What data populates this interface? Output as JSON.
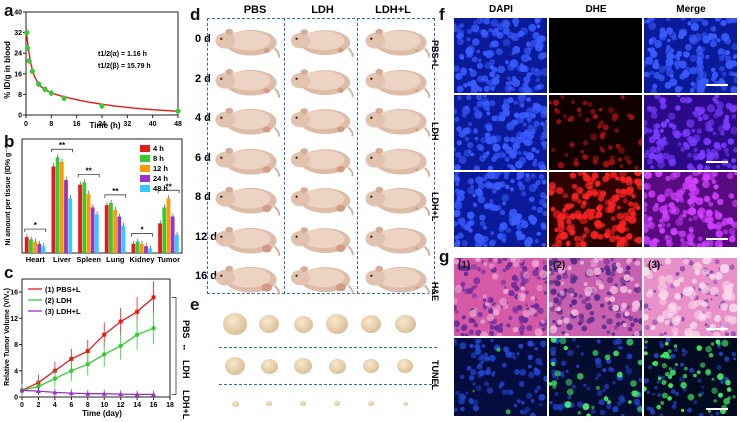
{
  "panels": {
    "a": "a",
    "b": "b",
    "c": "c",
    "d": "d",
    "e": "e",
    "f": "f",
    "g": "g"
  },
  "panel_a": {
    "ylabel": "% ID/g in blood",
    "xlabel": "Time (h)",
    "half_life_alpha": "t1/2(α) = 1.16 h",
    "half_life_beta": "t1/2(β) = 15.79 h"
  },
  "panel_b": {
    "ylabel": "Ni amount per tissue (ID% g⁻¹)",
    "legend": [
      "4 h",
      "8 h",
      "12 h",
      "24 h",
      "48 h"
    ],
    "significance": "**",
    "significance_single": "*"
  },
  "panel_c": {
    "ylabel": "Relative Tumor Volume (V/V₀)",
    "xlabel": "Time (day)",
    "legend": [
      "(1) PBS+L",
      "(2) LDH",
      "(3) LDH+L"
    ]
  },
  "panel_d": {
    "columns": [
      "PBS",
      "LDH",
      "LDH+L"
    ],
    "rows": [
      "0 d",
      "2 d",
      "4 d",
      "6 d",
      "8 d",
      "12 d",
      "16 d"
    ]
  },
  "panel_e": {
    "rows": [
      "PBS",
      "LDH",
      "LDH+L"
    ]
  },
  "panel_f": {
    "columns": [
      "DAPI",
      "DHE",
      "Merge"
    ],
    "rows": [
      "PBS+L",
      "LDH",
      "LDH+L"
    ]
  },
  "panel_g": {
    "columns": [
      "(1)",
      "(2)",
      "(3)"
    ],
    "rows": [
      "H&E",
      "TUNEL"
    ]
  },
  "colors": {
    "red": "#e41a1c",
    "green": "#33cc33",
    "orange": "#ff9900",
    "purple": "#9933cc",
    "cyan": "#33ccff",
    "mouse": "#e2c3b0",
    "dash_blue": "#3366cc"
  },
  "chart_data": [
    {
      "id": "a",
      "type": "scatter",
      "title": "",
      "xlabel": "Time (h)",
      "ylabel": "% ID/g in blood",
      "xlim": [
        0,
        48
      ],
      "ylim": [
        0,
        40
      ],
      "xticks": [
        0,
        8,
        16,
        24,
        32,
        40,
        48
      ],
      "yticks": [
        0,
        8,
        16,
        24,
        32,
        40
      ],
      "x": [
        0.25,
        0.5,
        1,
        2,
        4,
        6,
        8,
        12,
        24,
        48
      ],
      "y": [
        32,
        26,
        21,
        17,
        12,
        10,
        8.5,
        6.5,
        3.5,
        1.5
      ],
      "fit_color": "#e41a1c",
      "point_color": "#33cc33"
    },
    {
      "id": "b",
      "type": "bar",
      "xlabel": "",
      "ylabel": "Ni amount per tissue (ID% g⁻¹)",
      "ylim": [
        0,
        50
      ],
      "categories": [
        "Heart",
        "Liver",
        "Spleen",
        "Lung",
        "Kidney",
        "Tumor"
      ],
      "series": [
        {
          "name": "4 h",
          "values": [
            7,
            38,
            30,
            21,
            4,
            13
          ]
        },
        {
          "name": "8 h",
          "values": [
            6,
            42,
            31,
            22,
            5,
            20
          ]
        },
        {
          "name": "12 h",
          "values": [
            5,
            40,
            26,
            19,
            4,
            24
          ]
        },
        {
          "name": "24 h",
          "values": [
            4,
            32,
            20,
            16,
            3,
            16
          ]
        },
        {
          "name": "48 h",
          "values": [
            3,
            24,
            17,
            12,
            2,
            8
          ]
        }
      ]
    },
    {
      "id": "c",
      "type": "line",
      "xlabel": "Time (day)",
      "ylabel": "Relative Tumor Volume (V/V₀)",
      "xlim": [
        0,
        18
      ],
      "ylim": [
        0,
        18
      ],
      "xticks": [
        0,
        2,
        4,
        6,
        8,
        10,
        12,
        14,
        16,
        18
      ],
      "yticks": [
        0,
        4,
        8,
        12,
        16
      ],
      "x": [
        0,
        2,
        4,
        6,
        8,
        10,
        12,
        14,
        16
      ],
      "series": [
        {
          "name": "(1) PBS+L",
          "values": [
            1,
            2.2,
            4,
            5.8,
            7,
            9.5,
            11.5,
            13,
            15.2
          ]
        },
        {
          "name": "(2) LDH",
          "values": [
            1,
            1.6,
            2.8,
            4,
            5,
            6.5,
            7.8,
            9.5,
            10.5
          ]
        },
        {
          "name": "(3) LDH+L",
          "values": [
            1,
            0.9,
            0.7,
            0.6,
            0.5,
            0.5,
            0.45,
            0.4,
            0.4
          ]
        }
      ]
    }
  ]
}
